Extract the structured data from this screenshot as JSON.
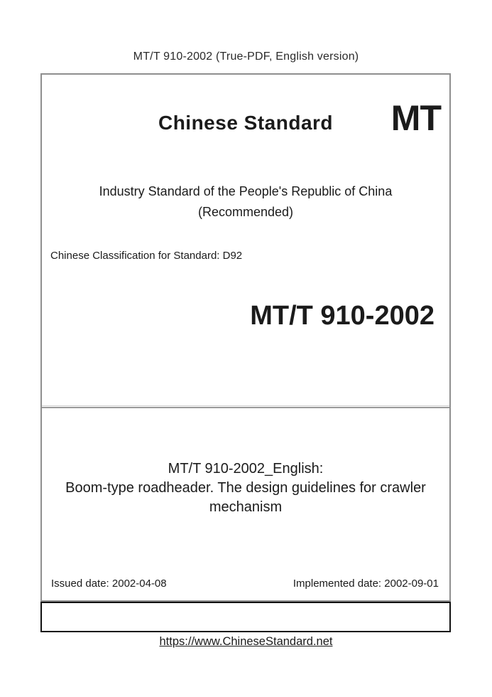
{
  "header": {
    "note": "MT/T 910-2002 (True-PDF, English version)"
  },
  "cover": {
    "brand_title": "Chinese Standard",
    "brand_code": "MT",
    "issuer_line": "Industry Standard of the People's Republic of China",
    "status_line": "(Recommended)",
    "classification": "Chinese Classification for Standard: D92",
    "standard_number": "MT/T 910-2002",
    "english_title_heading": "MT/T 910-2002_English:",
    "english_title_subject": "Boom-type roadheader. The design guidelines for crawler mechanism",
    "issued_date": "Issued date: 2002-04-08",
    "implemented_date": "Implemented date: 2002-09-01"
  },
  "footer": {
    "link": "https://www.ChineseStandard.net"
  },
  "colors": {
    "text": "#1b1b1b",
    "main_box_border": "#8f8f8f",
    "divider": "#9a9a9a",
    "empty_box_border": "#111111",
    "background": "#ffffff"
  }
}
